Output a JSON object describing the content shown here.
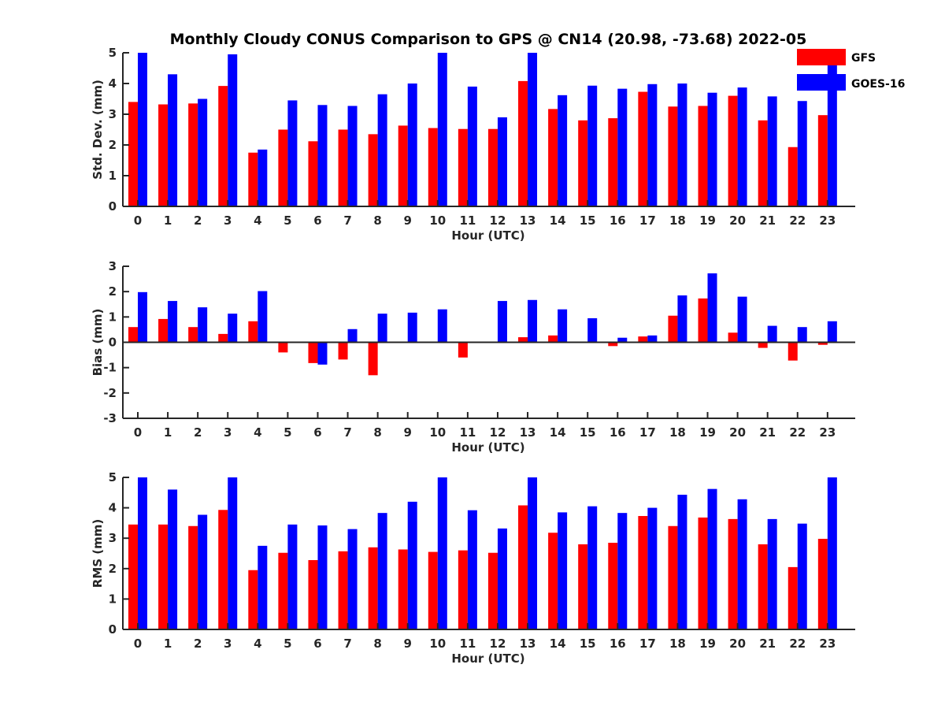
{
  "title": "Monthly Cloudy CONUS Comparison to GPS @ CN14 (20.98, -73.68) 2022-05",
  "legend": [
    {
      "name": "GFS",
      "color": "#ff0000"
    },
    {
      "name": "GOES-16",
      "color": "#0000ff"
    }
  ],
  "chart_data": [
    {
      "type": "bar",
      "name": "stddev",
      "ylabel": "Std. Dev. (mm)",
      "xlabel": "Hour (UTC)",
      "ylim": [
        0,
        5
      ],
      "yticks": [
        0,
        1,
        2,
        3,
        4,
        5
      ],
      "categories": [
        "0",
        "1",
        "2",
        "3",
        "4",
        "5",
        "6",
        "7",
        "8",
        "9",
        "10",
        "11",
        "12",
        "13",
        "14",
        "15",
        "16",
        "17",
        "18",
        "19",
        "20",
        "21",
        "22",
        "23"
      ],
      "series": [
        {
          "name": "GFS",
          "values": [
            3.4,
            3.32,
            3.35,
            3.92,
            1.75,
            2.5,
            2.12,
            2.5,
            2.35,
            2.63,
            2.55,
            2.52,
            2.52,
            4.08,
            3.17,
            2.8,
            2.87,
            3.73,
            3.25,
            3.27,
            3.6,
            2.8,
            1.93,
            2.97
          ]
        },
        {
          "name": "GOES-16",
          "values": [
            5.0,
            4.3,
            3.5,
            4.95,
            1.85,
            3.45,
            3.3,
            3.27,
            3.65,
            4.0,
            5.0,
            3.9,
            2.9,
            5.0,
            3.62,
            3.93,
            3.83,
            3.98,
            4.0,
            3.7,
            3.87,
            3.58,
            3.43,
            4.65
          ]
        }
      ]
    },
    {
      "type": "bar",
      "name": "bias",
      "ylabel": "Bias (mm)",
      "xlabel": "Hour (UTC)",
      "ylim": [
        -3,
        3
      ],
      "yticks": [
        -3,
        -2,
        -1,
        0,
        1,
        2,
        3
      ],
      "categories": [
        "0",
        "1",
        "2",
        "3",
        "4",
        "5",
        "6",
        "7",
        "8",
        "9",
        "10",
        "11",
        "12",
        "13",
        "14",
        "15",
        "16",
        "17",
        "18",
        "19",
        "20",
        "21",
        "22",
        "23"
      ],
      "series": [
        {
          "name": "GFS",
          "values": [
            0.6,
            0.92,
            0.6,
            0.33,
            0.83,
            -0.4,
            -0.82,
            -0.68,
            -1.3,
            0.0,
            0.03,
            -0.6,
            0.0,
            0.2,
            0.27,
            0.0,
            -0.15,
            0.23,
            1.05,
            1.73,
            0.38,
            -0.22,
            -0.72,
            -0.1
          ]
        },
        {
          "name": "GOES-16",
          "values": [
            1.98,
            1.63,
            1.38,
            1.13,
            2.02,
            0.0,
            -0.88,
            0.52,
            1.13,
            1.17,
            1.3,
            0.03,
            1.63,
            1.67,
            1.3,
            0.95,
            0.18,
            0.27,
            1.85,
            2.72,
            1.8,
            0.65,
            0.6,
            0.83
          ]
        }
      ]
    },
    {
      "type": "bar",
      "name": "rms",
      "ylabel": "RMS (mm)",
      "xlabel": "Hour (UTC)",
      "ylim": [
        0,
        5
      ],
      "yticks": [
        0,
        1,
        2,
        3,
        4,
        5
      ],
      "categories": [
        "0",
        "1",
        "2",
        "3",
        "4",
        "5",
        "6",
        "7",
        "8",
        "9",
        "10",
        "11",
        "12",
        "13",
        "14",
        "15",
        "16",
        "17",
        "18",
        "19",
        "20",
        "21",
        "22",
        "23"
      ],
      "series": [
        {
          "name": "GFS",
          "values": [
            3.45,
            3.45,
            3.4,
            3.93,
            1.95,
            2.52,
            2.28,
            2.57,
            2.7,
            2.63,
            2.55,
            2.6,
            2.52,
            4.08,
            3.18,
            2.8,
            2.85,
            3.73,
            3.4,
            3.68,
            3.63,
            2.8,
            2.05,
            2.98
          ]
        },
        {
          "name": "GOES-16",
          "values": [
            5.0,
            4.6,
            3.77,
            5.0,
            2.75,
            3.45,
            3.42,
            3.3,
            3.83,
            4.2,
            5.0,
            3.92,
            3.32,
            5.0,
            3.85,
            4.05,
            3.83,
            4.0,
            4.43,
            4.62,
            4.28,
            3.63,
            3.48,
            5.0
          ]
        }
      ]
    }
  ]
}
